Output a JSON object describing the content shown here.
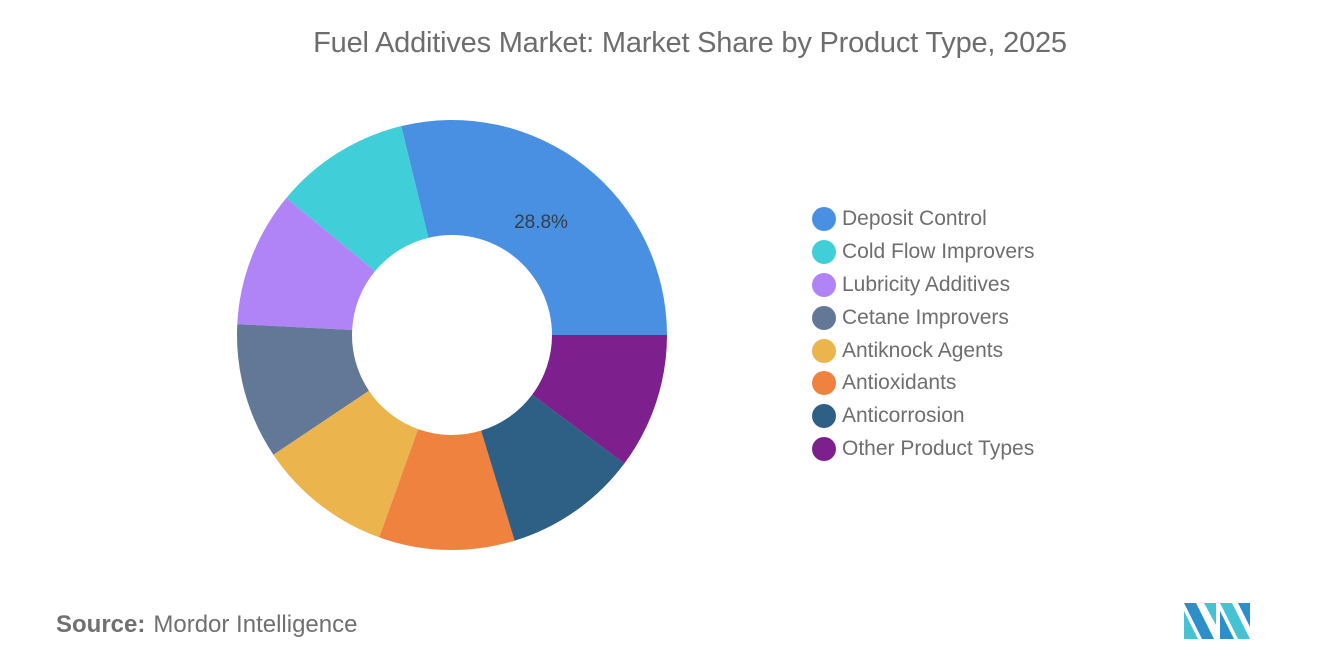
{
  "header": {
    "title": "Fuel Additives Market: Market Share by Product Type, 2025"
  },
  "footer": {
    "source_label": "Source:",
    "source_value": "Mordor Intelligence"
  },
  "chart_data": {
    "type": "pie",
    "subtype": "donut",
    "title": "Fuel Additives Market: Market Share by Product Type, 2025",
    "categories": [
      "Deposit Control",
      "Cold Flow Improvers",
      "Lubricity Additives",
      "Cetane Improvers",
      "Antiknock Agents",
      "Antioxidants",
      "Anticorrosion",
      "Other Product Types"
    ],
    "values": [
      28.8,
      10.2,
      10.2,
      10.2,
      10.1,
      10.2,
      10.1,
      10.2
    ],
    "colors": [
      "#4a90e2",
      "#40cfd9",
      "#b084f7",
      "#637796",
      "#ebb44c",
      "#f0823f",
      "#2e5f85",
      "#7e1f8e"
    ],
    "data_labels": [
      {
        "category": "Deposit Control",
        "text": "28.8%"
      }
    ],
    "legend_position": "right",
    "start_angle_deg": 90,
    "direction": "counterclockwise-from-3-oclock",
    "unit": "%"
  },
  "legend": {
    "items": [
      {
        "label": "Deposit Control",
        "color": "#4a90e2"
      },
      {
        "label": "Cold Flow Improvers",
        "color": "#40cfd9"
      },
      {
        "label": "Lubricity Additives",
        "color": "#b084f7"
      },
      {
        "label": "Cetane Improvers",
        "color": "#637796"
      },
      {
        "label": "Antiknock Agents",
        "color": "#ebb44c"
      },
      {
        "label": "Antioxidants",
        "color": "#f0823f"
      },
      {
        "label": "Anticorrosion",
        "color": "#2e5f85"
      },
      {
        "label": "Other Product Types",
        "color": "#7e1f8e"
      }
    ]
  },
  "logo": {
    "colors": [
      "#2d8fc9",
      "#45c3d2"
    ]
  }
}
